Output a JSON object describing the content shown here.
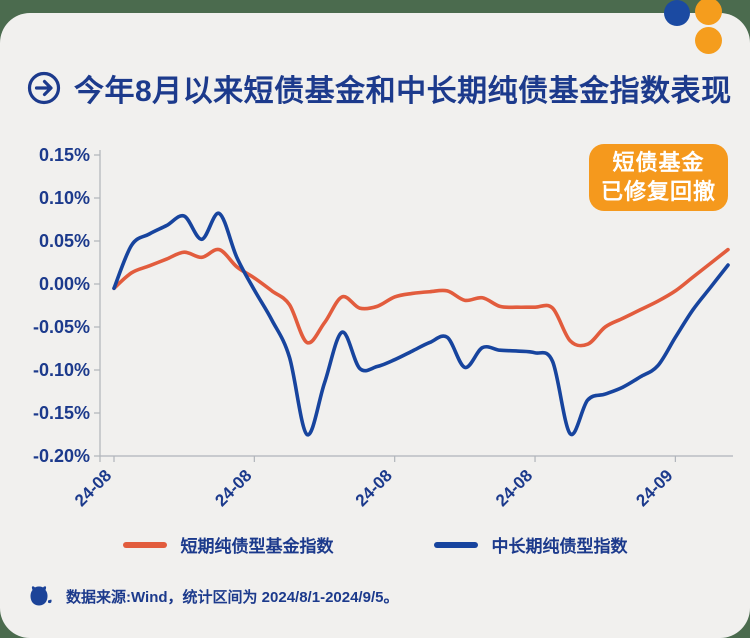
{
  "page": {
    "background_color": "#4b6b4e",
    "card_color": "#f1f0ee",
    "text_color": "#1c3a8c"
  },
  "decor": {
    "circles": [
      {
        "name": "blue-dot",
        "color": "#1b4aa2"
      },
      {
        "name": "orange-dot-top",
        "color": "#f59d1d"
      },
      {
        "name": "orange-dot-bottom",
        "color": "#f59d1d"
      }
    ]
  },
  "header": {
    "title": "今年8月以来短债基金和中长期纯债基金指数表现"
  },
  "badge": {
    "line1": "短债基金",
    "line2": "已修复回撤",
    "bg_color": "#f5991d",
    "text_color": "#ffffff"
  },
  "chart_data": {
    "type": "line",
    "title": "今年8月以来短债基金和中长期纯债基金指数表现",
    "xlabel": "",
    "ylabel": "",
    "unit": "%",
    "ylim": [
      -0.2,
      0.15
    ],
    "grid": false,
    "legend_position": "bottom",
    "x": [
      "08-01",
      "08-02",
      "08-03",
      "08-04",
      "08-05",
      "08-06",
      "08-07",
      "08-08",
      "08-09",
      "08-10",
      "08-11",
      "08-12",
      "08-13",
      "08-14",
      "08-15",
      "08-16",
      "08-17",
      "08-18",
      "08-19",
      "08-20",
      "08-21",
      "08-22",
      "08-23",
      "08-24",
      "08-25",
      "08-26",
      "08-27",
      "08-28",
      "08-29",
      "08-30",
      "08-31",
      "09-01",
      "09-02",
      "09-03",
      "09-04",
      "09-05"
    ],
    "x_tick_labels": [
      "24-08",
      "24-08",
      "24-08",
      "24-08",
      "24-09"
    ],
    "x_tick_indices": [
      0,
      8,
      16,
      24,
      32
    ],
    "y_tick_labels": [
      "0.15%",
      "0.10%",
      "0.05%",
      "0.00%",
      "-0.05%",
      "-0.10%",
      "-0.15%",
      "-0.20%"
    ],
    "series": [
      {
        "name": "短期纯债型基金指数",
        "color": "#e25c3d",
        "values": [
          -0.005,
          0.013,
          0.021,
          0.029,
          0.037,
          0.031,
          0.04,
          0.02,
          0.007,
          -0.008,
          -0.024,
          -0.068,
          -0.045,
          -0.015,
          -0.028,
          -0.026,
          -0.015,
          -0.011,
          -0.009,
          -0.008,
          -0.019,
          -0.016,
          -0.026,
          -0.027,
          -0.027,
          -0.028,
          -0.066,
          -0.07,
          -0.05,
          -0.04,
          -0.03,
          -0.02,
          -0.008,
          0.008,
          0.024,
          0.04
        ]
      },
      {
        "name": "中长期纯债型指数",
        "color": "#17449e",
        "values": [
          -0.005,
          0.045,
          0.058,
          0.068,
          0.079,
          0.052,
          0.082,
          0.031,
          -0.007,
          -0.042,
          -0.085,
          -0.175,
          -0.115,
          -0.056,
          -0.098,
          -0.096,
          -0.088,
          -0.078,
          -0.068,
          -0.062,
          -0.097,
          -0.074,
          -0.077,
          -0.078,
          -0.08,
          -0.09,
          -0.174,
          -0.135,
          -0.128,
          -0.12,
          -0.108,
          -0.095,
          -0.062,
          -0.03,
          -0.004,
          0.022
        ]
      }
    ]
  },
  "footer": {
    "text": "数据来源:Wind，统计区间为 2024/8/1-2024/9/5。"
  }
}
